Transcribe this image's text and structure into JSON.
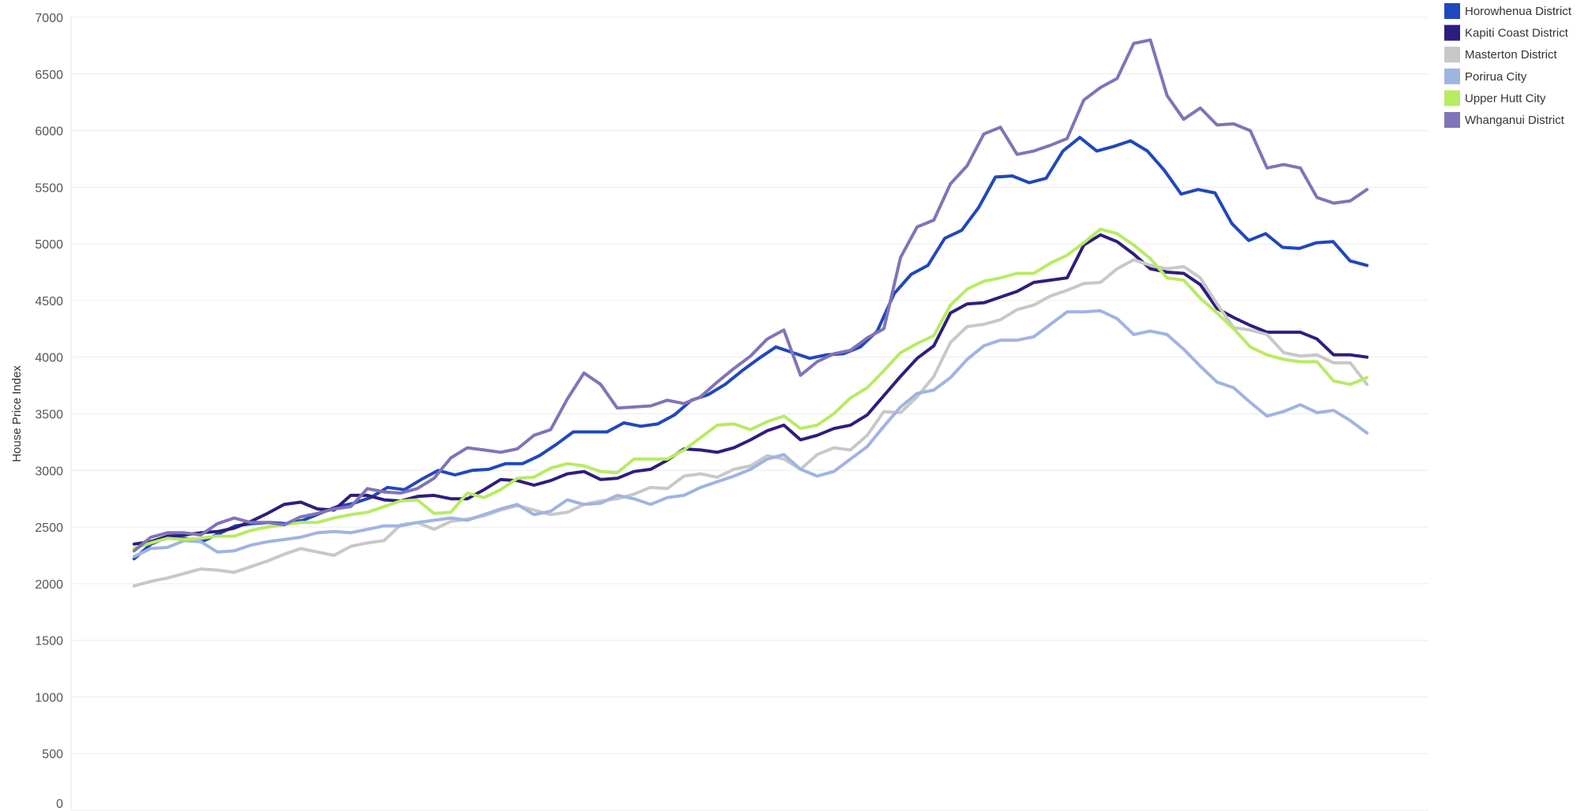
{
  "chart_data": {
    "type": "line",
    "title": "",
    "xlabel": "",
    "ylabel": "House Price Index",
    "ylim": [
      0,
      7000
    ],
    "yticks": [
      0,
      500,
      1000,
      1500,
      2000,
      2500,
      3000,
      3500,
      4000,
      4500,
      5000,
      5500,
      6000,
      6500,
      7000
    ],
    "grid": "horizontal",
    "legend": "top-right",
    "series": [
      {
        "name": "Horowhenua District",
        "color": "#1f48bd",
        "values": [
          2220,
          2350,
          2410,
          2400,
          2370,
          2440,
          2510,
          2530,
          2540,
          2530,
          2560,
          2620,
          2680,
          2710,
          2760,
          2850,
          2830,
          2920,
          3000,
          2960,
          3000,
          3010,
          3060,
          3060,
          3130,
          3230,
          3340,
          3340,
          3340,
          3420,
          3390,
          3410,
          3490,
          3620,
          3670,
          3760,
          3880,
          3990,
          4090,
          4040,
          3990,
          4020,
          4030,
          4090,
          4230,
          4560,
          4730,
          4810,
          5050,
          5120,
          5320,
          5590,
          5600,
          5540,
          5580,
          5820,
          5940,
          5820,
          5860,
          5910,
          5820,
          5650,
          5440,
          5480,
          5450,
          5180,
          5030,
          5090,
          4970,
          4960,
          5010,
          5020,
          4850,
          4810
        ]
      },
      {
        "name": "Kapiti Coast District",
        "color": "#2e1d7e",
        "values": [
          2350,
          2370,
          2420,
          2430,
          2450,
          2460,
          2490,
          2550,
          2620,
          2700,
          2720,
          2660,
          2650,
          2780,
          2780,
          2740,
          2730,
          2770,
          2780,
          2750,
          2750,
          2830,
          2920,
          2910,
          2870,
          2910,
          2970,
          2990,
          2920,
          2930,
          2990,
          3010,
          3090,
          3190,
          3180,
          3160,
          3200,
          3270,
          3350,
          3400,
          3270,
          3310,
          3370,
          3400,
          3490,
          3660,
          3830,
          3990,
          4100,
          4390,
          4470,
          4480,
          4530,
          4580,
          4660,
          4680,
          4700,
          4990,
          5080,
          5020,
          4910,
          4780,
          4750,
          4740,
          4640,
          4430,
          4350,
          4280,
          4220,
          4220,
          4220,
          4160,
          4020,
          4020,
          4000
        ]
      },
      {
        "name": "Masterton District",
        "color": "#c8c8c8",
        "values": [
          1980,
          2020,
          2050,
          2090,
          2130,
          2120,
          2100,
          2150,
          2200,
          2260,
          2310,
          2280,
          2250,
          2330,
          2360,
          2380,
          2520,
          2540,
          2480,
          2550,
          2570,
          2600,
          2650,
          2690,
          2650,
          2610,
          2630,
          2700,
          2730,
          2750,
          2790,
          2850,
          2840,
          2950,
          2970,
          2940,
          3010,
          3040,
          3130,
          3100,
          3010,
          3140,
          3200,
          3180,
          3310,
          3520,
          3510,
          3650,
          3830,
          4130,
          4270,
          4290,
          4330,
          4420,
          4460,
          4540,
          4590,
          4650,
          4660,
          4780,
          4860,
          4810,
          4780,
          4800,
          4700,
          4470,
          4260,
          4240,
          4200,
          4040,
          4010,
          4020,
          3950,
          3950,
          3760
        ]
      },
      {
        "name": "Porirua City",
        "color": "#a0b4e2",
        "values": [
          2240,
          2310,
          2320,
          2380,
          2370,
          2280,
          2290,
          2340,
          2370,
          2390,
          2410,
          2450,
          2460,
          2450,
          2480,
          2510,
          2510,
          2540,
          2560,
          2580,
          2560,
          2610,
          2660,
          2700,
          2610,
          2640,
          2740,
          2700,
          2710,
          2780,
          2750,
          2700,
          2760,
          2780,
          2850,
          2900,
          2950,
          3010,
          3100,
          3140,
          3010,
          2950,
          2990,
          3100,
          3210,
          3390,
          3560,
          3680,
          3710,
          3820,
          3980,
          4100,
          4150,
          4150,
          4180,
          4290,
          4400,
          4400,
          4410,
          4340,
          4200,
          4230,
          4200,
          4070,
          3920,
          3780,
          3730,
          3600,
          3480,
          3520,
          3580,
          3510,
          3530,
          3440,
          3330
        ]
      },
      {
        "name": "Upper Hutt City",
        "color": "#b8eb63",
        "values": [
          2310,
          2360,
          2400,
          2390,
          2400,
          2420,
          2420,
          2470,
          2500,
          2520,
          2540,
          2540,
          2580,
          2610,
          2630,
          2680,
          2730,
          2740,
          2620,
          2630,
          2800,
          2760,
          2830,
          2930,
          2940,
          3020,
          3060,
          3040,
          2990,
          2980,
          3100,
          3100,
          3100,
          3180,
          3290,
          3400,
          3410,
          3360,
          3430,
          3480,
          3370,
          3400,
          3500,
          3640,
          3730,
          3880,
          4040,
          4120,
          4190,
          4460,
          4600,
          4670,
          4700,
          4740,
          4740,
          4830,
          4900,
          5010,
          5130,
          5090,
          4990,
          4870,
          4700,
          4680,
          4520,
          4390,
          4250,
          4090,
          4020,
          3980,
          3960,
          3960,
          3790,
          3760,
          3820
        ]
      },
      {
        "name": "Whanganui District",
        "color": "#8074b8",
        "values": [
          2290,
          2410,
          2450,
          2450,
          2430,
          2530,
          2580,
          2540,
          2540,
          2520,
          2590,
          2620,
          2660,
          2680,
          2840,
          2810,
          2800,
          2840,
          2930,
          3110,
          3200,
          3180,
          3160,
          3190,
          3310,
          3360,
          3630,
          3860,
          3760,
          3550,
          3560,
          3570,
          3620,
          3590,
          3650,
          3780,
          3900,
          4010,
          4160,
          4240,
          3840,
          3960,
          4030,
          4060,
          4170,
          4250,
          4880,
          5150,
          5210,
          5530,
          5690,
          5970,
          6030,
          5790,
          5820,
          5870,
          5930,
          6270,
          6380,
          6460,
          6770,
          6800,
          6310,
          6100,
          6200,
          6050,
          6060,
          6000,
          5670,
          5700,
          5670,
          5410,
          5360,
          5380,
          5480
        ]
      }
    ]
  }
}
